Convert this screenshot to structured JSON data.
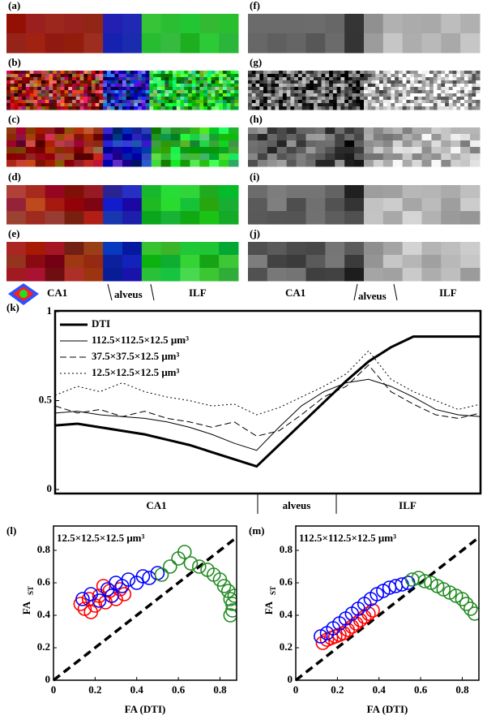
{
  "panel_labels": [
    "(a)",
    "(b)",
    "(c)",
    "(d)",
    "(e)",
    "(f)",
    "(g)",
    "(h)",
    "(i)",
    "(j)",
    "(k)",
    "(l)",
    "(m)"
  ],
  "strip_regions": [
    "CA1",
    "alveus",
    "ILF"
  ],
  "chart_data": [
    {
      "type": "line",
      "categories": [
        null,
        null,
        null,
        null,
        null,
        null,
        null,
        null,
        null,
        null,
        null,
        null,
        null,
        null,
        null,
        null,
        null,
        null,
        null,
        null
      ],
      "ylim": [
        0,
        1
      ],
      "yticks": [
        0,
        0.5,
        1
      ],
      "regions": [
        "CA1",
        "alveus",
        "ILF"
      ],
      "legend": "top-left",
      "series": [
        {
          "name": "DTI",
          "color": "#000000",
          "style": "solid",
          "width": 3,
          "values": [
            0.36,
            0.37,
            0.35,
            0.33,
            0.31,
            0.28,
            0.25,
            0.21,
            0.17,
            0.13,
            0.25,
            0.37,
            0.49,
            0.61,
            0.72,
            0.8,
            0.86,
            0.86,
            0.86,
            0.86
          ]
        },
        {
          "name": "112.5×112.5×12.5 μm³",
          "color": "#000000",
          "style": "solid",
          "width": 1,
          "values": [
            0.43,
            0.44,
            0.42,
            0.41,
            0.4,
            0.38,
            0.35,
            0.31,
            0.26,
            0.22,
            0.35,
            0.47,
            0.55,
            0.6,
            0.62,
            0.58,
            0.52,
            0.45,
            0.42,
            0.41
          ]
        },
        {
          "name": "37.5×37.5×12.5 μm³",
          "color": "#000000",
          "style": "dashed",
          "width": 1,
          "values": [
            0.47,
            0.43,
            0.45,
            0.41,
            0.44,
            0.4,
            0.38,
            0.35,
            0.38,
            0.3,
            0.33,
            0.42,
            0.52,
            0.58,
            0.7,
            0.55,
            0.48,
            0.42,
            0.4,
            0.43
          ]
        },
        {
          "name": "12.5×12.5×12.5 μm³",
          "color": "#000000",
          "style": "dotted",
          "width": 1,
          "values": [
            0.53,
            0.58,
            0.55,
            0.6,
            0.55,
            0.52,
            0.5,
            0.47,
            0.48,
            0.42,
            0.46,
            0.52,
            0.58,
            0.65,
            0.78,
            0.62,
            0.55,
            0.5,
            0.45,
            0.48
          ]
        }
      ]
    },
    {
      "type": "scatter",
      "title": "12.5×12.5×12.5 μm³",
      "xlabel": "FA (DTI)",
      "ylabel": "FA",
      "ylabel_sub": "ST",
      "xlim": [
        0,
        0.88
      ],
      "ylim": [
        0,
        0.95
      ],
      "xticks": [
        0,
        0.2,
        0.4,
        0.6,
        0.8
      ],
      "yticks": [
        0,
        0.2,
        0.4,
        0.6,
        0.8
      ],
      "series": [
        {
          "color": "#ff0000",
          "x": [
            0.13,
            0.15,
            0.17,
            0.2,
            0.22,
            0.25,
            0.27,
            0.3,
            0.32,
            0.34,
            0.18,
            0.24
          ],
          "values": [
            0.47,
            0.44,
            0.5,
            0.46,
            0.52,
            0.48,
            0.55,
            0.5,
            0.56,
            0.53,
            0.42,
            0.58
          ]
        },
        {
          "color": "#0000ff",
          "x": [
            0.14,
            0.18,
            0.22,
            0.26,
            0.3,
            0.33,
            0.36,
            0.4,
            0.43,
            0.46,
            0.5,
            0.28
          ],
          "values": [
            0.5,
            0.53,
            0.49,
            0.56,
            0.6,
            0.58,
            0.62,
            0.6,
            0.64,
            0.63,
            0.66,
            0.52
          ]
        },
        {
          "color": "#228b22",
          "x": [
            0.52,
            0.56,
            0.6,
            0.63,
            0.66,
            0.7,
            0.74,
            0.77,
            0.8,
            0.82,
            0.84,
            0.85,
            0.86,
            0.86,
            0.85,
            0.87
          ],
          "values": [
            0.65,
            0.7,
            0.75,
            0.79,
            0.72,
            0.7,
            0.68,
            0.65,
            0.62,
            0.58,
            0.55,
            0.5,
            0.47,
            0.43,
            0.4,
            0.52
          ]
        }
      ]
    },
    {
      "type": "scatter",
      "title": "112.5×112.5×12.5 μm³",
      "xlabel": "FA (DTI)",
      "ylabel": "FA",
      "ylabel_sub": "ST",
      "xlim": [
        0,
        0.88
      ],
      "ylim": [
        0,
        0.95
      ],
      "xticks": [
        0,
        0.2,
        0.4,
        0.6,
        0.8
      ],
      "yticks": [
        0,
        0.2,
        0.4,
        0.6,
        0.8
      ],
      "series": [
        {
          "color": "#ff0000",
          "x": [
            0.13,
            0.15,
            0.17,
            0.19,
            0.21,
            0.23,
            0.25,
            0.27,
            0.29,
            0.31,
            0.33,
            0.35,
            0.37
          ],
          "values": [
            0.23,
            0.25,
            0.26,
            0.27,
            0.28,
            0.29,
            0.31,
            0.33,
            0.35,
            0.37,
            0.39,
            0.41,
            0.43
          ]
        },
        {
          "color": "#0000ff",
          "x": [
            0.12,
            0.15,
            0.18,
            0.21,
            0.24,
            0.27,
            0.3,
            0.33,
            0.36,
            0.39,
            0.42,
            0.45,
            0.48,
            0.51,
            0.54
          ],
          "values": [
            0.27,
            0.29,
            0.32,
            0.35,
            0.38,
            0.41,
            0.44,
            0.47,
            0.5,
            0.53,
            0.55,
            0.57,
            0.58,
            0.59,
            0.6
          ]
        },
        {
          "color": "#228b22",
          "x": [
            0.56,
            0.59,
            0.62,
            0.65,
            0.68,
            0.71,
            0.74,
            0.77,
            0.8,
            0.82,
            0.84,
            0.86
          ],
          "values": [
            0.62,
            0.63,
            0.61,
            0.6,
            0.58,
            0.56,
            0.54,
            0.52,
            0.5,
            0.47,
            0.44,
            0.41
          ]
        }
      ]
    }
  ]
}
